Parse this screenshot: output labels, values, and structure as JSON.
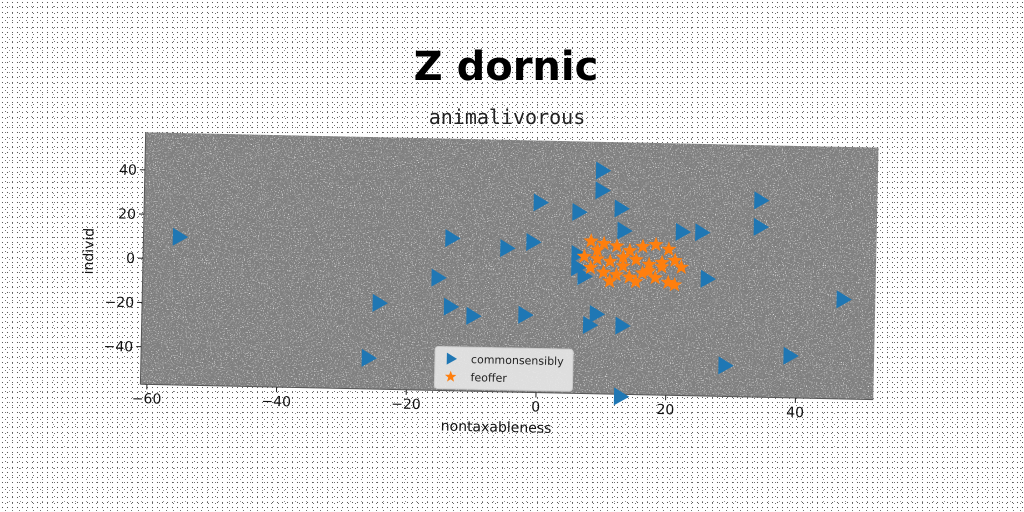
{
  "chart_data": {
    "type": "scatter",
    "title": "Z dornic",
    "subtitle": "animalivorous",
    "xlabel": "nontaxableness",
    "ylabel": "individ",
    "xlim": [
      -61,
      52
    ],
    "ylim": [
      -57,
      57
    ],
    "xticks": [
      -60,
      -40,
      -20,
      0,
      20,
      40
    ],
    "yticks": [
      -40,
      -20,
      0,
      20,
      40
    ],
    "grid": false,
    "legend_position": "bottom-center",
    "colors": {
      "plot_bg": "#808080",
      "series1": "#1f77b4",
      "series2": "#ff7f0e"
    },
    "series": [
      {
        "name": "commonsensibly",
        "marker": "triangle-right",
        "color": "#1f77b4",
        "points": [
          [
            -55.5,
            10
          ],
          [
            -24.5,
            -18
          ],
          [
            -26,
            -43
          ],
          [
            -13.5,
            12
          ],
          [
            -15.5,
            -6
          ],
          [
            -13.5,
            -19
          ],
          [
            -10,
            -23
          ],
          [
            -5,
            8
          ],
          [
            -2,
            -22
          ],
          [
            -1,
            11
          ],
          [
            0,
            29
          ],
          [
            6,
            25
          ],
          [
            9.5,
            44
          ],
          [
            9.5,
            35
          ],
          [
            12.5,
            27
          ],
          [
            13,
            17
          ],
          [
            6,
            6
          ],
          [
            6,
            0
          ],
          [
            7,
            -4
          ],
          [
            9,
            -21
          ],
          [
            8,
            -26
          ],
          [
            13,
            -26
          ],
          [
            22,
            17
          ],
          [
            25,
            17
          ],
          [
            26,
            -4
          ],
          [
            34,
            32
          ],
          [
            34,
            20
          ],
          [
            29,
            -43
          ],
          [
            39,
            -38
          ],
          [
            47,
            -12
          ],
          [
            13,
            -58
          ]
        ]
      },
      {
        "name": "feoffer",
        "marker": "star",
        "color": "#ff7f0e",
        "points": [
          [
            8,
            12
          ],
          [
            10,
            11
          ],
          [
            12,
            10
          ],
          [
            14,
            8
          ],
          [
            16,
            10
          ],
          [
            18,
            11
          ],
          [
            20,
            9
          ],
          [
            7,
            5
          ],
          [
            9,
            4
          ],
          [
            11,
            3
          ],
          [
            13,
            5
          ],
          [
            15,
            4
          ],
          [
            17,
            2
          ],
          [
            19,
            3
          ],
          [
            21,
            4
          ],
          [
            8,
            0
          ],
          [
            10,
            -2
          ],
          [
            12,
            -3
          ],
          [
            14,
            -4
          ],
          [
            16,
            -2
          ],
          [
            18,
            -4
          ],
          [
            20,
            -6
          ],
          [
            15,
            -6
          ],
          [
            11,
            -6
          ],
          [
            19,
            1
          ],
          [
            13,
            1
          ],
          [
            22,
            1
          ],
          [
            17,
            -1
          ],
          [
            9,
            8
          ],
          [
            21,
            -7
          ]
        ]
      }
    ]
  }
}
